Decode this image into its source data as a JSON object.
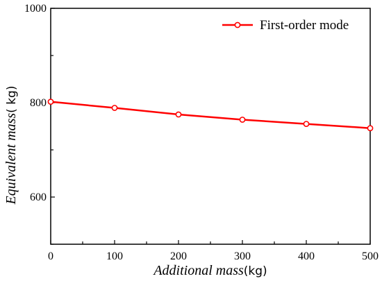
{
  "chart_data": {
    "type": "line",
    "title": "",
    "xlabel": "Additional mass",
    "xlabel_unit": "(kg)",
    "ylabel": "Equivalent mass",
    "ylabel_unit": "( kg)",
    "xlim": [
      0,
      500
    ],
    "ylim": [
      500,
      1000
    ],
    "x_ticks": [
      0,
      100,
      200,
      300,
      400,
      500
    ],
    "y_ticks_labeled": [
      600,
      800,
      1000
    ],
    "y_ticks": [
      500,
      600,
      700,
      800,
      900,
      1000
    ],
    "grid": false,
    "legend_position": "top-right",
    "series": [
      {
        "name": "First-order mode",
        "color": "#ff0000",
        "x": [
          0,
          100,
          200,
          300,
          400,
          500
        ],
        "y": [
          802,
          789,
          775,
          764,
          755,
          746
        ]
      }
    ]
  }
}
